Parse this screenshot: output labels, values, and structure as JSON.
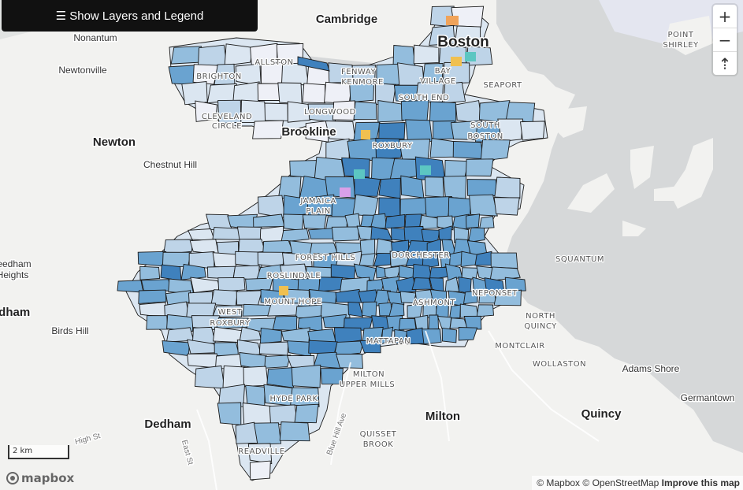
{
  "controls": {
    "layers_button": "☰ Show Layers and Legend",
    "zoom_in": "+",
    "zoom_out": "−",
    "compass": "⇡"
  },
  "scale_label": "2 km",
  "logo_text": "mapbox",
  "attribution": {
    "mapbox": "© Mapbox",
    "osm": "© OpenStreetMap",
    "improve": "Improve this map"
  },
  "colors": {
    "water": "#d6d8d9",
    "land": "#f2f2f0",
    "choropleth": [
      "#eef0f7",
      "#dbe6f1",
      "#bed4e8",
      "#93bddd",
      "#6aa3d0",
      "#3f81bd"
    ],
    "boundary": "#1a1a1a"
  },
  "labels": {
    "cities": [
      {
        "text": "Cambridge",
        "type": "city"
      },
      {
        "text": "Boston",
        "type": "capital"
      },
      {
        "text": "Brookline",
        "type": "city"
      },
      {
        "text": "Newton",
        "type": "city"
      },
      {
        "text": "Milton",
        "type": "city"
      },
      {
        "text": "Quincy",
        "type": "city"
      },
      {
        "text": "Dedham",
        "type": "city"
      },
      {
        "text": "edham",
        "type": "city"
      }
    ],
    "towns": [
      {
        "text": "Nonantum"
      },
      {
        "text": "Newtonville"
      },
      {
        "text": "Chestnut Hill"
      },
      {
        "text": "eedham"
      },
      {
        "text": "Heights"
      },
      {
        "text": "Birds Hill"
      },
      {
        "text": "Adams Shore"
      },
      {
        "text": "Germantown"
      }
    ],
    "neighborhoods": [
      {
        "text": "ALLSTON"
      },
      {
        "text": "BRIGHTON"
      },
      {
        "text": "FENWAY"
      },
      {
        "text": "KENMORE"
      },
      {
        "text": "BAY"
      },
      {
        "text": "VILLAGE"
      },
      {
        "text": "SOUTH END"
      },
      {
        "text": "SEAPORT"
      },
      {
        "text": "LONGWOOD"
      },
      {
        "text": "CLEVELAND"
      },
      {
        "text": "CIRCLE"
      },
      {
        "text": "SOUTH"
      },
      {
        "text": "BOSTON"
      },
      {
        "text": "ROXBURY"
      },
      {
        "text": "JAMAICA"
      },
      {
        "text": "PLAIN"
      },
      {
        "text": "FOREST HILLS"
      },
      {
        "text": "DORCHESTER"
      },
      {
        "text": "ROSLINDALE"
      },
      {
        "text": "MOUNT HOPE"
      },
      {
        "text": "WEST"
      },
      {
        "text": "ROXBURY"
      },
      {
        "text": "NEPONSET"
      },
      {
        "text": "ASHMONT"
      },
      {
        "text": "MATTAPAN"
      },
      {
        "text": "MILTON"
      },
      {
        "text": "UPPER MILLS"
      },
      {
        "text": "HYDE PARK"
      },
      {
        "text": "READVILLE"
      },
      {
        "text": "QUISSET"
      },
      {
        "text": "BROOK"
      },
      {
        "text": "SQUANTUM"
      },
      {
        "text": "NORTH"
      },
      {
        "text": "QUINCY"
      },
      {
        "text": "MONTCLAIR"
      },
      {
        "text": "WOLLASTON"
      },
      {
        "text": "POINT"
      },
      {
        "text": "SHIRLEY"
      }
    ],
    "roads": [
      {
        "text": "Blue Hill Ave"
      },
      {
        "text": "High St"
      },
      {
        "text": "East St"
      }
    ]
  }
}
